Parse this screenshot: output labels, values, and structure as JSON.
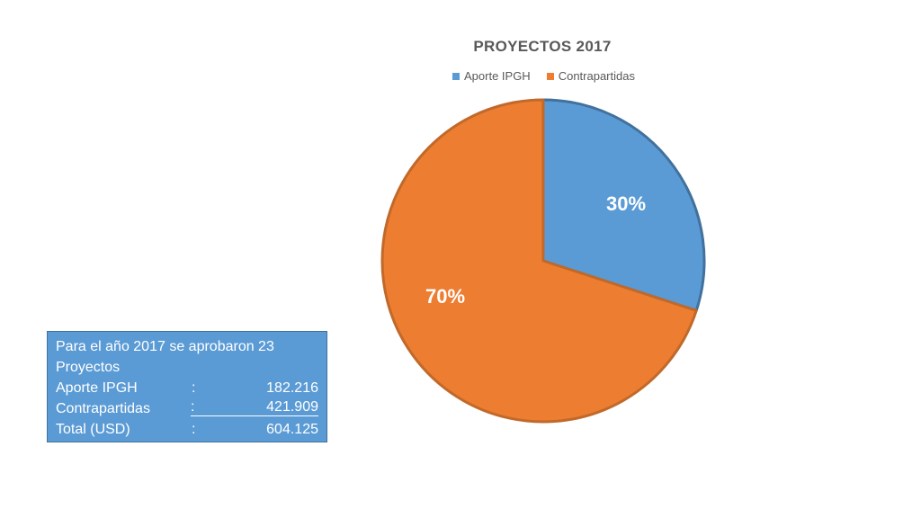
{
  "chart_data": {
    "type": "pie",
    "title": "PROYECTOS 2017",
    "categories": [
      "Aporte IPGH",
      "Contrapartidas"
    ],
    "values": [
      30,
      70
    ],
    "data_labels": [
      "30%",
      "70%"
    ],
    "colors": [
      "#5b9bd5",
      "#ed7d31"
    ],
    "legend_position": "top"
  },
  "info_box": {
    "line1": "Para el año 2017 se aprobaron 23",
    "line2": "Proyectos",
    "rows": [
      {
        "label": "Aporte IPGH",
        "colon": ":",
        "value": "182.216"
      },
      {
        "label": "Contrapartidas",
        "colon": ":",
        "value": "421.909"
      },
      {
        "label": "Total (USD)",
        "colon": ":",
        "value": "604.125"
      }
    ]
  }
}
